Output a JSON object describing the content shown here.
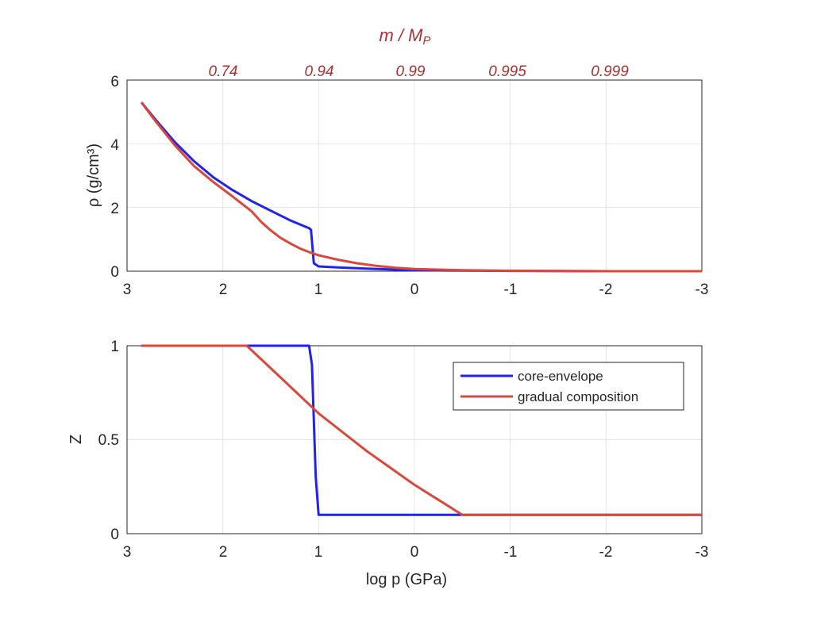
{
  "colors": {
    "core_envelope": "#2222f0",
    "gradual": "#d9483b",
    "top_axis": "#a83232",
    "grid": "#e4e4e4"
  },
  "chart_data": [
    {
      "type": "line",
      "id": "density",
      "x_reversed": true,
      "xlim": [
        -3,
        3
      ],
      "ylim": [
        0,
        6
      ],
      "grid": true,
      "xticks": [
        3,
        2,
        1,
        0,
        -1,
        -2,
        -3
      ],
      "yticks": [
        0,
        2,
        4,
        6
      ],
      "xlabel": "",
      "ylabel": "ρ (g/cm³)",
      "top_axis": {
        "title": "m / M",
        "title_sub": "P",
        "tick_labels": [
          "0.74",
          "0.94",
          "0.99",
          "0.995",
          "0.999"
        ],
        "tick_positions": [
          2.0,
          1.0,
          0.0,
          -1.0,
          -2.0
        ]
      },
      "series": [
        {
          "key": "core_envelope",
          "x": [
            2.85,
            2.7,
            2.5,
            2.3,
            2.1,
            1.9,
            1.7,
            1.5,
            1.3,
            1.1,
            1.08,
            1.05,
            1.0,
            0.8,
            0.5,
            0.2,
            0.0,
            -0.5,
            -1.0,
            -2.0,
            -3.0
          ],
          "y": [
            5.3,
            4.75,
            4.05,
            3.45,
            2.95,
            2.55,
            2.2,
            1.9,
            1.6,
            1.35,
            1.3,
            0.25,
            0.15,
            0.12,
            0.08,
            0.05,
            0.03,
            0.02,
            0.01,
            0.0,
            0.0
          ]
        },
        {
          "key": "gradual",
          "x": [
            2.85,
            2.7,
            2.5,
            2.3,
            2.1,
            1.9,
            1.75,
            1.7,
            1.6,
            1.5,
            1.4,
            1.3,
            1.2,
            1.1,
            1.0,
            0.8,
            0.6,
            0.4,
            0.2,
            0.0,
            -0.5,
            -1.0,
            -2.0,
            -3.0
          ],
          "y": [
            5.3,
            4.7,
            3.95,
            3.3,
            2.8,
            2.35,
            2.0,
            1.88,
            1.55,
            1.28,
            1.05,
            0.88,
            0.72,
            0.6,
            0.5,
            0.36,
            0.25,
            0.17,
            0.11,
            0.07,
            0.03,
            0.015,
            0.0,
            0.0
          ]
        }
      ]
    },
    {
      "type": "line",
      "id": "composition",
      "x_reversed": true,
      "xlim": [
        -3,
        3
      ],
      "ylim": [
        0,
        1
      ],
      "grid": true,
      "xticks": [
        3,
        2,
        1,
        0,
        -1,
        -2,
        -3
      ],
      "yticks": [
        0,
        0.5,
        1
      ],
      "xlabel": "log p (GPa)",
      "ylabel": "Z",
      "legend": {
        "placement": "upper-right"
      },
      "series": [
        {
          "key": "core_envelope",
          "name": "core-envelope",
          "x": [
            2.85,
            1.1,
            1.07,
            1.05,
            1.03,
            1.0,
            0.5,
            -1.0,
            -3.0
          ],
          "y": [
            1.0,
            1.0,
            0.9,
            0.6,
            0.3,
            0.1,
            0.1,
            0.1,
            0.1
          ],
          "legend_y": 0.85
        },
        {
          "key": "gradual",
          "name": "gradual composition",
          "x": [
            2.85,
            1.75,
            1.5,
            1.25,
            1.0,
            0.75,
            0.5,
            0.25,
            0.0,
            -0.25,
            -0.5,
            -1.0,
            -2.0,
            -3.0
          ],
          "y": [
            1.0,
            1.0,
            0.88,
            0.76,
            0.64,
            0.54,
            0.44,
            0.35,
            0.26,
            0.18,
            0.1,
            0.1,
            0.1,
            0.1
          ],
          "legend_y": 0.73
        }
      ]
    }
  ]
}
